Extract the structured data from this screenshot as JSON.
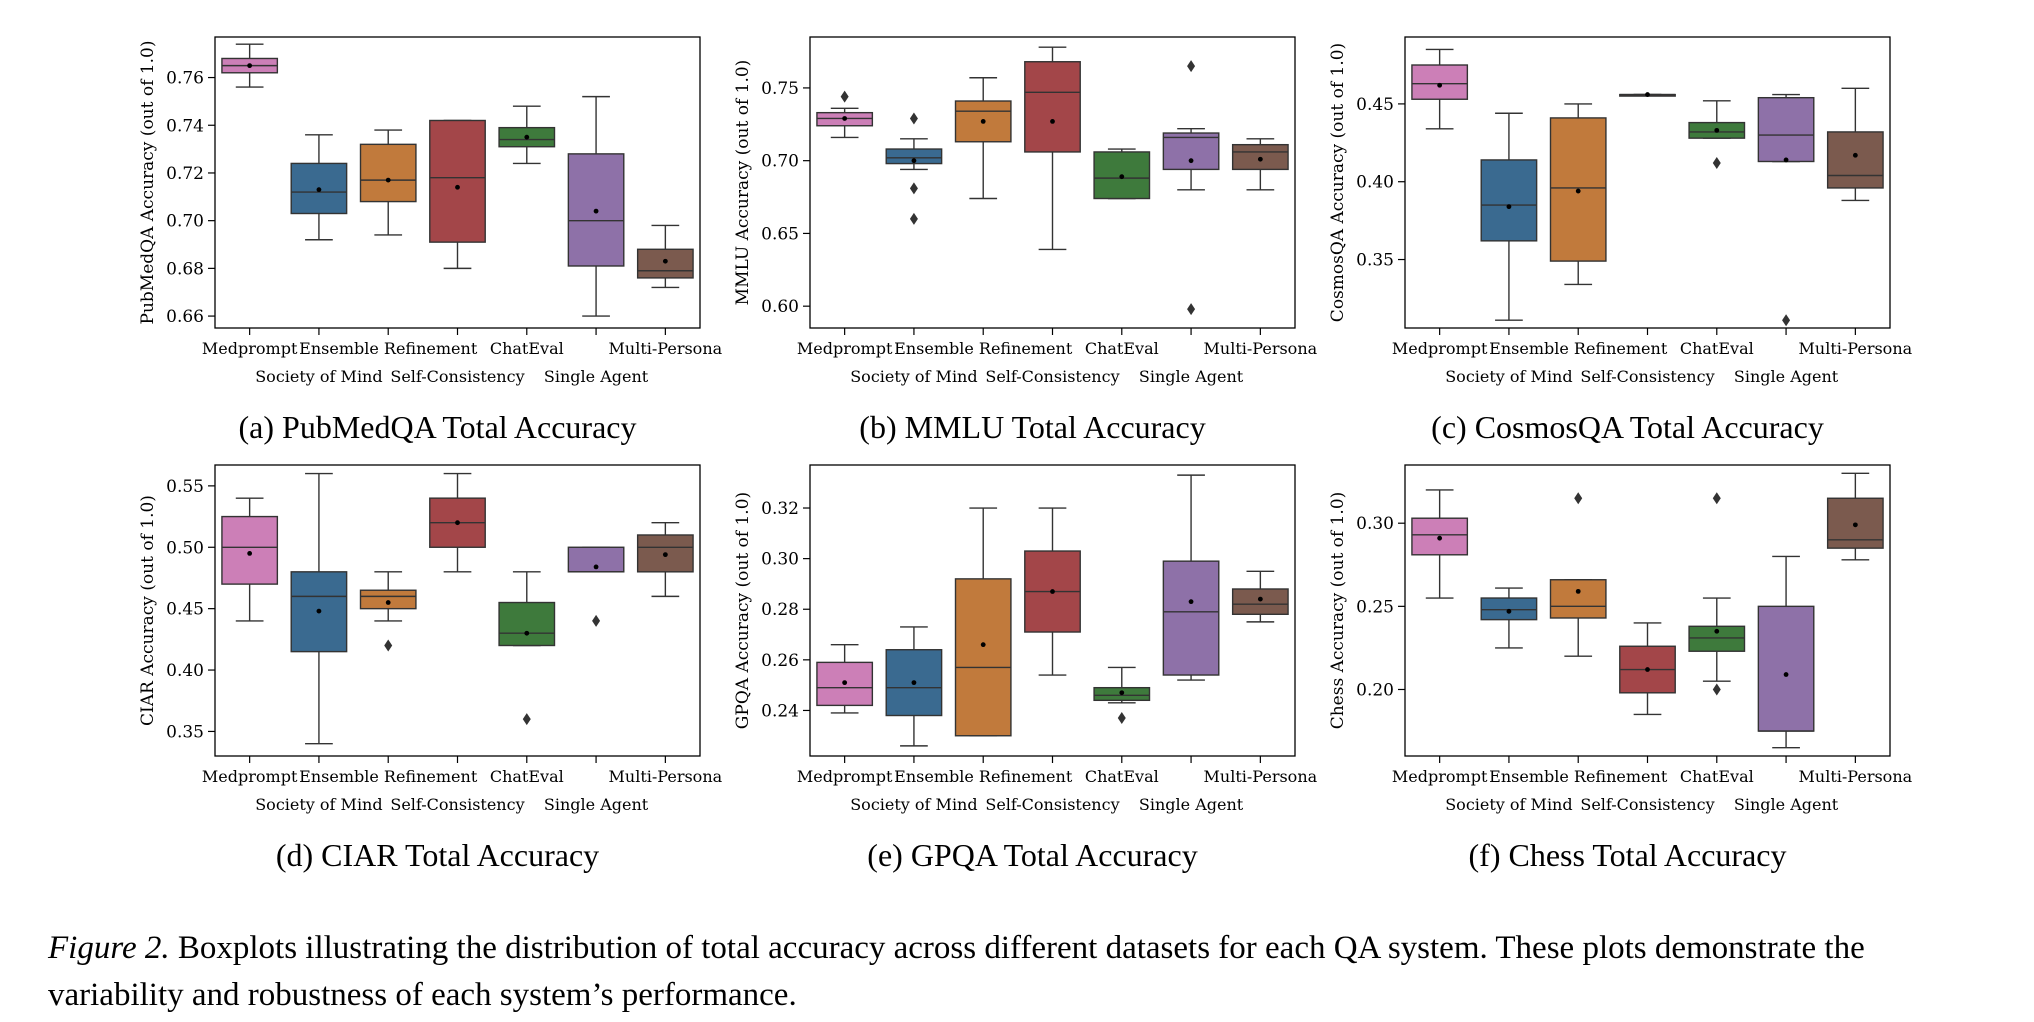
{
  "caption": {
    "label": "Figure 2.",
    "text": "Boxplots illustrating the distribution of total accuracy across different datasets for each QA system. These plots demonstrate the variability and robustness of each system’s performance."
  },
  "palette": {
    "Medprompt": "#cc7fb7",
    "Society of Mind": "#3a6a90",
    "Ensemble Refinement": "#c17a3c",
    "Self-Consistency": "#a34649",
    "ChatEval": "#3e7a3c",
    "Single Agent": "#8e71a8",
    "Multi-Persona": "#7b5a4e"
  },
  "chart_data": [
    {
      "type": "box",
      "subcaption": "(a) PubMedQA Total Accuracy",
      "ylabel": "PubMedQA Accuracy (out of 1.0)",
      "categories": [
        "Medprompt",
        "Society of Mind",
        "Ensemble Refinement",
        "Self-Consistency",
        "ChatEval",
        "Single Agent",
        "Multi-Persona"
      ],
      "ylim": [
        0.655,
        0.777
      ],
      "yticks": [
        "0.66",
        "0.68",
        "0.70",
        "0.72",
        "0.74",
        "0.76"
      ],
      "boxes": [
        {
          "name": "Medprompt",
          "whislo": 0.756,
          "q1": 0.762,
          "med": 0.765,
          "q3": 0.768,
          "whishi": 0.774,
          "mean": 0.765,
          "fliers": []
        },
        {
          "name": "Society of Mind",
          "whislo": 0.692,
          "q1": 0.703,
          "med": 0.712,
          "q3": 0.724,
          "whishi": 0.736,
          "mean": 0.713,
          "fliers": []
        },
        {
          "name": "Ensemble Refinement",
          "whislo": 0.694,
          "q1": 0.708,
          "med": 0.717,
          "q3": 0.732,
          "whishi": 0.738,
          "mean": 0.717,
          "fliers": []
        },
        {
          "name": "Self-Consistency",
          "whislo": 0.68,
          "q1": 0.691,
          "med": 0.718,
          "q3": 0.742,
          "whishi": 0.742,
          "mean": 0.714,
          "fliers": []
        },
        {
          "name": "ChatEval",
          "whislo": 0.724,
          "q1": 0.731,
          "med": 0.734,
          "q3": 0.739,
          "whishi": 0.748,
          "mean": 0.735,
          "fliers": []
        },
        {
          "name": "Single Agent",
          "whislo": 0.66,
          "q1": 0.681,
          "med": 0.7,
          "q3": 0.728,
          "whishi": 0.752,
          "mean": 0.704,
          "fliers": []
        },
        {
          "name": "Multi-Persona",
          "whislo": 0.672,
          "q1": 0.676,
          "med": 0.679,
          "q3": 0.688,
          "whishi": 0.698,
          "mean": 0.683,
          "fliers": []
        }
      ]
    },
    {
      "type": "box",
      "subcaption": "(b) MMLU Total Accuracy",
      "ylabel": "MMLU Accuracy (out of 1.0)",
      "categories": [
        "Medprompt",
        "Society of Mind",
        "Ensemble Refinement",
        "Self-Consistency",
        "ChatEval",
        "Single Agent",
        "Multi-Persona"
      ],
      "ylim": [
        0.585,
        0.785
      ],
      "yticks": [
        "0.60",
        "0.65",
        "0.70",
        "0.75"
      ],
      "boxes": [
        {
          "name": "Medprompt",
          "whislo": 0.716,
          "q1": 0.724,
          "med": 0.729,
          "q3": 0.733,
          "whishi": 0.736,
          "mean": 0.729,
          "fliers": [
            0.744
          ]
        },
        {
          "name": "Society of Mind",
          "whislo": 0.694,
          "q1": 0.698,
          "med": 0.702,
          "q3": 0.708,
          "whishi": 0.715,
          "mean": 0.7,
          "fliers": [
            0.729,
            0.681,
            0.66
          ]
        },
        {
          "name": "Ensemble Refinement",
          "whislo": 0.674,
          "q1": 0.713,
          "med": 0.734,
          "q3": 0.741,
          "whishi": 0.757,
          "mean": 0.727,
          "fliers": []
        },
        {
          "name": "Self-Consistency",
          "whislo": 0.639,
          "q1": 0.706,
          "med": 0.747,
          "q3": 0.768,
          "whishi": 0.778,
          "mean": 0.727,
          "fliers": []
        },
        {
          "name": "ChatEval",
          "whislo": 0.674,
          "q1": 0.674,
          "med": 0.688,
          "q3": 0.706,
          "whishi": 0.708,
          "mean": 0.689,
          "fliers": []
        },
        {
          "name": "Single Agent",
          "whislo": 0.68,
          "q1": 0.694,
          "med": 0.716,
          "q3": 0.719,
          "whishi": 0.722,
          "mean": 0.7,
          "fliers": [
            0.765,
            0.598
          ]
        },
        {
          "name": "Multi-Persona",
          "whislo": 0.68,
          "q1": 0.694,
          "med": 0.706,
          "q3": 0.711,
          "whishi": 0.715,
          "mean": 0.701,
          "fliers": []
        }
      ]
    },
    {
      "type": "box",
      "subcaption": "(c) CosmosQA Total Accuracy",
      "ylabel": "CosmosQA Accuracy (out of 1.0)",
      "categories": [
        "Medprompt",
        "Society of Mind",
        "Ensemble Refinement",
        "Self-Consistency",
        "ChatEval",
        "Single Agent",
        "Multi-Persona"
      ],
      "ylim": [
        0.306,
        0.493
      ],
      "yticks": [
        "0.35",
        "0.40",
        "0.45"
      ],
      "boxes": [
        {
          "name": "Medprompt",
          "whislo": 0.434,
          "q1": 0.453,
          "med": 0.463,
          "q3": 0.475,
          "whishi": 0.485,
          "mean": 0.462,
          "fliers": []
        },
        {
          "name": "Society of Mind",
          "whislo": 0.311,
          "q1": 0.362,
          "med": 0.385,
          "q3": 0.414,
          "whishi": 0.444,
          "mean": 0.384,
          "fliers": []
        },
        {
          "name": "Ensemble Refinement",
          "whislo": 0.334,
          "q1": 0.349,
          "med": 0.396,
          "q3": 0.441,
          "whishi": 0.45,
          "mean": 0.394,
          "fliers": []
        },
        {
          "name": "Self-Consistency",
          "whislo": 0.456,
          "q1": 0.456,
          "med": 0.456,
          "q3": 0.456,
          "whishi": 0.456,
          "mean": 0.456,
          "fliers": []
        },
        {
          "name": "ChatEval",
          "whislo": 0.428,
          "q1": 0.428,
          "med": 0.432,
          "q3": 0.438,
          "whishi": 0.452,
          "mean": 0.433,
          "fliers": [
            0.412
          ]
        },
        {
          "name": "Single Agent",
          "whislo": 0.413,
          "q1": 0.413,
          "med": 0.43,
          "q3": 0.454,
          "whishi": 0.456,
          "mean": 0.414,
          "fliers": [
            0.311
          ]
        },
        {
          "name": "Multi-Persona",
          "whislo": 0.388,
          "q1": 0.396,
          "med": 0.404,
          "q3": 0.432,
          "whishi": 0.46,
          "mean": 0.417,
          "fliers": []
        }
      ]
    },
    {
      "type": "box",
      "subcaption": "(d) CIAR Total Accuracy",
      "ylabel": "CIAR Accuracy (out of 1.0)",
      "categories": [
        "Medprompt",
        "Society of Mind",
        "Ensemble Refinement",
        "Self-Consistency",
        "ChatEval",
        "Single Agent",
        "Multi-Persona"
      ],
      "ylim": [
        0.33,
        0.567
      ],
      "yticks": [
        "0.35",
        "0.40",
        "0.45",
        "0.50",
        "0.55"
      ],
      "boxes": [
        {
          "name": "Medprompt",
          "whislo": 0.44,
          "q1": 0.47,
          "med": 0.5,
          "q3": 0.525,
          "whishi": 0.54,
          "mean": 0.495,
          "fliers": []
        },
        {
          "name": "Society of Mind",
          "whislo": 0.34,
          "q1": 0.415,
          "med": 0.46,
          "q3": 0.48,
          "whishi": 0.56,
          "mean": 0.448,
          "fliers": []
        },
        {
          "name": "Ensemble Refinement",
          "whislo": 0.44,
          "q1": 0.45,
          "med": 0.46,
          "q3": 0.465,
          "whishi": 0.48,
          "mean": 0.455,
          "fliers": [
            0.42
          ]
        },
        {
          "name": "Self-Consistency",
          "whislo": 0.48,
          "q1": 0.5,
          "med": 0.52,
          "q3": 0.54,
          "whishi": 0.56,
          "mean": 0.52,
          "fliers": []
        },
        {
          "name": "ChatEval",
          "whislo": 0.42,
          "q1": 0.42,
          "med": 0.43,
          "q3": 0.455,
          "whishi": 0.48,
          "mean": 0.43,
          "fliers": [
            0.36
          ]
        },
        {
          "name": "Single Agent",
          "whislo": 0.48,
          "q1": 0.48,
          "med": 0.48,
          "q3": 0.5,
          "whishi": 0.5,
          "mean": 0.484,
          "fliers": [
            0.44
          ]
        },
        {
          "name": "Multi-Persona",
          "whislo": 0.46,
          "q1": 0.48,
          "med": 0.5,
          "q3": 0.51,
          "whishi": 0.52,
          "mean": 0.494,
          "fliers": []
        }
      ]
    },
    {
      "type": "box",
      "subcaption": "(e) GPQA Total Accuracy",
      "ylabel": "GPQA Accuracy (out of 1.0)",
      "categories": [
        "Medprompt",
        "Society of Mind",
        "Ensemble Refinement",
        "Self-Consistency",
        "ChatEval",
        "Single Agent",
        "Multi-Persona"
      ],
      "ylim": [
        0.222,
        0.337
      ],
      "yticks": [
        "0.24",
        "0.26",
        "0.28",
        "0.30",
        "0.32"
      ],
      "boxes": [
        {
          "name": "Medprompt",
          "whislo": 0.239,
          "q1": 0.242,
          "med": 0.249,
          "q3": 0.259,
          "whishi": 0.266,
          "mean": 0.251,
          "fliers": []
        },
        {
          "name": "Society of Mind",
          "whislo": 0.226,
          "q1": 0.238,
          "med": 0.249,
          "q3": 0.264,
          "whishi": 0.273,
          "mean": 0.251,
          "fliers": []
        },
        {
          "name": "Ensemble Refinement",
          "whislo": 0.23,
          "q1": 0.23,
          "med": 0.257,
          "q3": 0.292,
          "whishi": 0.32,
          "mean": 0.266,
          "fliers": []
        },
        {
          "name": "Self-Consistency",
          "whislo": 0.254,
          "q1": 0.271,
          "med": 0.287,
          "q3": 0.303,
          "whishi": 0.32,
          "mean": 0.287,
          "fliers": []
        },
        {
          "name": "ChatEval",
          "whislo": 0.243,
          "q1": 0.244,
          "med": 0.246,
          "q3": 0.249,
          "whishi": 0.257,
          "mean": 0.247,
          "fliers": [
            0.237
          ]
        },
        {
          "name": "Single Agent",
          "whislo": 0.252,
          "q1": 0.254,
          "med": 0.279,
          "q3": 0.299,
          "whishi": 0.333,
          "mean": 0.283,
          "fliers": []
        },
        {
          "name": "Multi-Persona",
          "whislo": 0.275,
          "q1": 0.278,
          "med": 0.282,
          "q3": 0.288,
          "whishi": 0.295,
          "mean": 0.284,
          "fliers": []
        }
      ]
    },
    {
      "type": "box",
      "subcaption": "(f) Chess Total Accuracy",
      "ylabel": "Chess Accuracy (out of 1.0)",
      "categories": [
        "Medprompt",
        "Society of Mind",
        "Ensemble Refinement",
        "Self-Consistency",
        "ChatEval",
        "Single Agent",
        "Multi-Persona"
      ],
      "ylim": [
        0.16,
        0.335
      ],
      "yticks": [
        "0.20",
        "0.25",
        "0.30"
      ],
      "boxes": [
        {
          "name": "Medprompt",
          "whislo": 0.255,
          "q1": 0.281,
          "med": 0.293,
          "q3": 0.303,
          "whishi": 0.32,
          "mean": 0.291,
          "fliers": []
        },
        {
          "name": "Society of Mind",
          "whislo": 0.225,
          "q1": 0.242,
          "med": 0.248,
          "q3": 0.255,
          "whishi": 0.261,
          "mean": 0.247,
          "fliers": []
        },
        {
          "name": "Ensemble Refinement",
          "whislo": 0.22,
          "q1": 0.243,
          "med": 0.25,
          "q3": 0.266,
          "whishi": 0.266,
          "mean": 0.259,
          "fliers": [
            0.315
          ]
        },
        {
          "name": "Self-Consistency",
          "whislo": 0.185,
          "q1": 0.198,
          "med": 0.212,
          "q3": 0.226,
          "whishi": 0.24,
          "mean": 0.212,
          "fliers": []
        },
        {
          "name": "ChatEval",
          "whislo": 0.205,
          "q1": 0.223,
          "med": 0.231,
          "q3": 0.238,
          "whishi": 0.255,
          "mean": 0.235,
          "fliers": [
            0.315,
            0.2
          ]
        },
        {
          "name": "Single Agent",
          "whislo": 0.165,
          "q1": 0.175,
          "med": 0.175,
          "q3": 0.25,
          "whishi": 0.28,
          "mean": 0.209,
          "fliers": []
        },
        {
          "name": "Multi-Persona",
          "whislo": 0.278,
          "q1": 0.285,
          "med": 0.29,
          "q3": 0.315,
          "whishi": 0.33,
          "mean": 0.299,
          "fliers": []
        }
      ]
    }
  ]
}
